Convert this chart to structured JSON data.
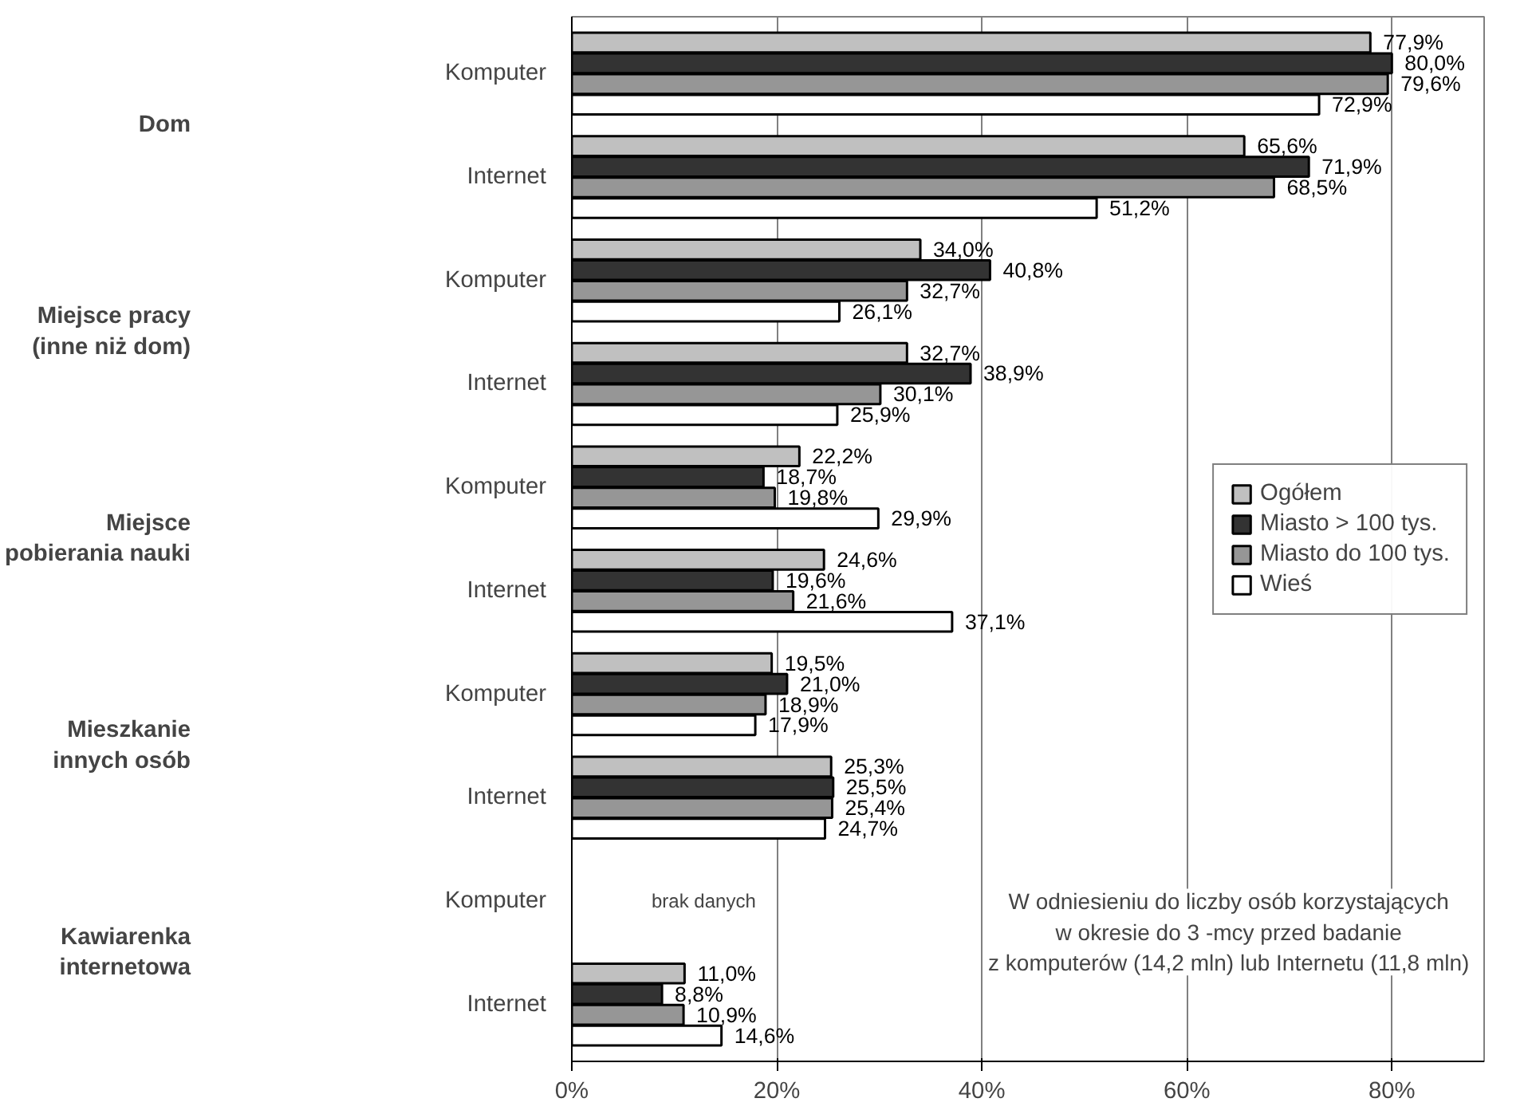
{
  "chart_data": {
    "type": "bar",
    "orientation": "horizontal",
    "categories": [
      "Komputer",
      "Internet",
      "Komputer",
      "Internet",
      "Komputer",
      "Internet",
      "Komputer",
      "Internet",
      "Komputer",
      "Internet"
    ],
    "series": [
      {
        "name": "Ogółem",
        "color": "#c0c0c0",
        "values": [
          77.9,
          65.6,
          34.0,
          32.7,
          22.2,
          24.6,
          19.5,
          25.3,
          null,
          11.0
        ],
        "value_labels": [
          "77,9%",
          "65,6%",
          "34,0%",
          "32,7%",
          "22,2%",
          "24,6%",
          "19,5%",
          "25,3%",
          null,
          "11,0%"
        ]
      },
      {
        "name": "Miasto > 100 tys.",
        "color": "#333333",
        "values": [
          80.0,
          71.9,
          40.8,
          38.9,
          18.7,
          19.6,
          21.0,
          25.5,
          null,
          8.8
        ],
        "value_labels": [
          "80,0%",
          "71,9%",
          "40,8%",
          "38,9%",
          "18,7%",
          "19,6%",
          "21,0%",
          "25,5%",
          null,
          "8,8%"
        ]
      },
      {
        "name": "Miasto do 100 tys.",
        "color": "#969696",
        "values": [
          79.6,
          68.5,
          32.7,
          30.1,
          19.8,
          21.6,
          18.9,
          25.4,
          null,
          10.9
        ],
        "value_labels": [
          "79,6%",
          "68,5%",
          "32,7%",
          "30,1%",
          "19,8%",
          "21,6%",
          "18,9%",
          "25,4%",
          null,
          "10,9%"
        ]
      },
      {
        "name": "Wieś",
        "color": "#ffffff",
        "values": [
          72.9,
          51.2,
          26.1,
          25.9,
          29.9,
          37.1,
          17.9,
          24.7,
          null,
          14.6
        ],
        "value_labels": [
          "72,9%",
          "51,2%",
          "26,1%",
          "25,9%",
          "29,9%",
          "37,1%",
          "17,9%",
          "24,7%",
          null,
          "14,6%"
        ]
      }
    ],
    "xlim": [
      0,
      89
    ],
    "xticks": [
      {
        "value": 0,
        "label": "0%"
      },
      {
        "value": 20,
        "label": "20%"
      },
      {
        "value": 40,
        "label": "40%"
      },
      {
        "value": 60,
        "label": "60%"
      },
      {
        "value": 80,
        "label": "80%"
      }
    ],
    "grid": "x",
    "legend": "right",
    "annotations": [
      "Dom",
      "Miejsce pracy\n(inne niż dom)",
      "Miejsce\npobierania nauki",
      "Mieszkanie\ninnych osób",
      "Kawiarenka\ninternetowa",
      "brak danych",
      "W odniesieniu do liczby osób korzystających\nw okresie do 3 -mcy przed badanie\nz komputerów (14,2 mln) lub Internetu (11,8 mln)"
    ]
  }
}
